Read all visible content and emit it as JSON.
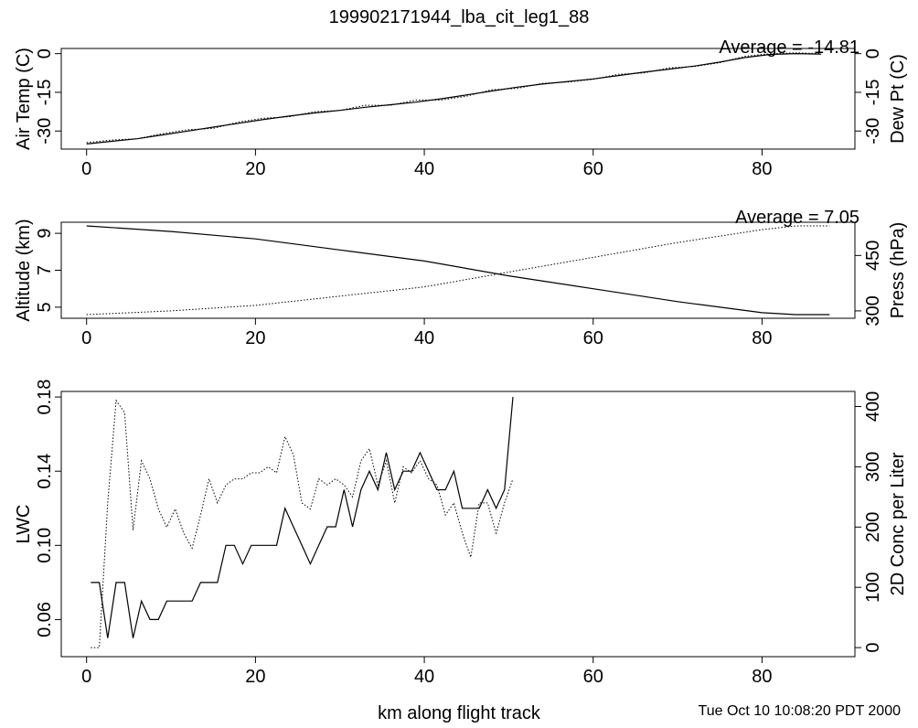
{
  "page": {
    "title": "199902171944_lba_cit_leg1_88",
    "xlabel": "km along flight track",
    "timestamp": "Tue Oct 10 10:08:20 PDT 2000"
  },
  "chart_data": [
    {
      "type": "line",
      "xlim": [
        -3,
        91
      ],
      "xticks": [
        "0",
        "20",
        "40",
        "60",
        "80"
      ],
      "ylabel_left": "Air Temp (C)",
      "ylabel_right": "Dew Pt (C)",
      "ylim_left": [
        -37,
        2
      ],
      "yticks_left": [
        "0",
        "-15",
        "-30"
      ],
      "ylim_right": [
        -37,
        2
      ],
      "yticks_right": [
        "0",
        "-15",
        "-30"
      ],
      "annotation": "Average = -14.81",
      "series": [
        {
          "axis": "left",
          "style": "solid",
          "x": [
            0,
            3,
            6,
            9,
            12,
            15,
            18,
            21,
            24,
            27,
            30,
            33,
            36,
            39,
            42,
            45,
            48,
            51,
            54,
            57,
            60,
            63,
            66,
            69,
            72,
            75,
            78,
            81,
            84,
            87
          ],
          "y": [
            -35,
            -34,
            -33,
            -31.5,
            -30,
            -28.5,
            -27,
            -25.5,
            -24.2,
            -23,
            -22,
            -20.8,
            -19.8,
            -18.8,
            -17.5,
            -16,
            -14.5,
            -13,
            -11.8,
            -10.8,
            -9.8,
            -8.5,
            -7.2,
            -6,
            -4.8,
            -3.3,
            -1.5,
            -0.3,
            0,
            -0.2
          ]
        },
        {
          "axis": "right",
          "style": "dotted",
          "x": [
            0,
            3,
            6,
            9,
            12,
            15,
            18,
            21,
            24,
            27,
            30,
            33,
            36,
            39,
            42,
            45,
            48,
            51,
            54,
            57,
            60,
            63,
            66,
            69,
            72,
            75,
            78,
            81,
            84,
            87
          ],
          "y": [
            -34.5,
            -33.5,
            -33,
            -31,
            -29.5,
            -29,
            -26.5,
            -25,
            -24.5,
            -22.5,
            -22,
            -20,
            -20,
            -18,
            -18,
            -16.5,
            -14,
            -13.5,
            -11.5,
            -11,
            -10,
            -8,
            -7.5,
            -5.5,
            -5,
            -3.5,
            -1,
            0,
            0.3,
            0
          ]
        }
      ]
    },
    {
      "type": "line",
      "xlim": [
        -3,
        91
      ],
      "xticks": [
        "0",
        "20",
        "40",
        "60",
        "80"
      ],
      "ylabel_left": "Altitude (km)",
      "ylabel_right": "Press (hPa)",
      "ylim_left": [
        4.4,
        9.6
      ],
      "yticks_left": [
        "5",
        "7",
        "9"
      ],
      "ylim_right": [
        280,
        540
      ],
      "yticks_right": [
        "300",
        "450"
      ],
      "annotation": "Average = 7.05",
      "series": [
        {
          "axis": "left",
          "style": "solid",
          "x": [
            0,
            10,
            20,
            30,
            40,
            50,
            60,
            70,
            80,
            84,
            88
          ],
          "y": [
            9.4,
            9.1,
            8.7,
            8.1,
            7.5,
            6.7,
            6.0,
            5.3,
            4.7,
            4.6,
            4.6
          ]
        },
        {
          "axis": "right",
          "style": "dotted",
          "x": [
            0,
            10,
            20,
            30,
            40,
            50,
            60,
            70,
            80,
            84,
            88
          ],
          "y": [
            290,
            300,
            315,
            340,
            365,
            405,
            445,
            485,
            520,
            530,
            530
          ]
        }
      ]
    },
    {
      "type": "line",
      "xlim": [
        -3,
        91
      ],
      "xticks": [
        "0",
        "20",
        "40",
        "60",
        "80"
      ],
      "ylabel_left": "LWC",
      "ylabel_right": "2D Conc per Liter",
      "ylim_left": [
        0.04,
        0.183
      ],
      "yticks_left": [
        "0.06",
        "0.10",
        "0.14",
        "0.18"
      ],
      "ylim_right": [
        -15,
        425
      ],
      "yticks_right": [
        "0",
        "100",
        "200",
        "300",
        "400"
      ],
      "series": [
        {
          "axis": "left",
          "style": "solid",
          "x": [
            0.5,
            1.5,
            2.5,
            3.5,
            4.5,
            5.5,
            6.5,
            7.5,
            8.5,
            9.5,
            10.5,
            11.5,
            12.5,
            13.5,
            14.5,
            15.5,
            16.5,
            17.5,
            18.5,
            19.5,
            20.5,
            21.5,
            22.5,
            23.5,
            24.5,
            25.5,
            26.5,
            27.5,
            28.5,
            29.5,
            30.5,
            31.5,
            32.5,
            33.5,
            34.5,
            35.5,
            36.5,
            37.5,
            38.5,
            39.5,
            40.5,
            41.5,
            42.5,
            43.5,
            44.5,
            45.5,
            46.5,
            47.5,
            48.5,
            49.5,
            50.5
          ],
          "y": [
            0.08,
            0.08,
            0.05,
            0.08,
            0.08,
            0.05,
            0.07,
            0.06,
            0.06,
            0.07,
            0.07,
            0.07,
            0.07,
            0.08,
            0.08,
            0.08,
            0.1,
            0.1,
            0.09,
            0.1,
            0.1,
            0.1,
            0.1,
            0.12,
            0.11,
            0.1,
            0.09,
            0.1,
            0.11,
            0.11,
            0.13,
            0.11,
            0.13,
            0.14,
            0.13,
            0.15,
            0.13,
            0.14,
            0.14,
            0.15,
            0.14,
            0.13,
            0.13,
            0.14,
            0.12,
            0.12,
            0.12,
            0.13,
            0.12,
            0.13,
            0.18
          ]
        },
        {
          "axis": "right",
          "style": "dotted",
          "x": [
            0.5,
            1.5,
            2.5,
            3.5,
            4.5,
            5.5,
            6.5,
            7.5,
            8.5,
            9.5,
            10.5,
            11.5,
            12.5,
            13.5,
            14.5,
            15.5,
            16.5,
            17.5,
            18.5,
            19.5,
            20.5,
            21.5,
            22.5,
            23.5,
            24.5,
            25.5,
            26.5,
            27.5,
            28.5,
            29.5,
            30.5,
            31.5,
            32.5,
            33.5,
            34.5,
            35.5,
            36.5,
            37.5,
            38.5,
            39.5,
            40.5,
            41.5,
            42.5,
            43.5,
            44.5,
            45.5,
            46.5,
            47.5,
            48.5,
            49.5,
            50.5
          ],
          "y": [
            0,
            0,
            240,
            410,
            390,
            195,
            310,
            280,
            230,
            200,
            230,
            190,
            165,
            220,
            280,
            240,
            270,
            280,
            280,
            290,
            290,
            300,
            290,
            350,
            320,
            240,
            230,
            280,
            270,
            280,
            270,
            250,
            310,
            330,
            270,
            310,
            240,
            300,
            290,
            310,
            280,
            270,
            220,
            240,
            190,
            150,
            240,
            240,
            190,
            240,
            280
          ]
        }
      ]
    }
  ]
}
